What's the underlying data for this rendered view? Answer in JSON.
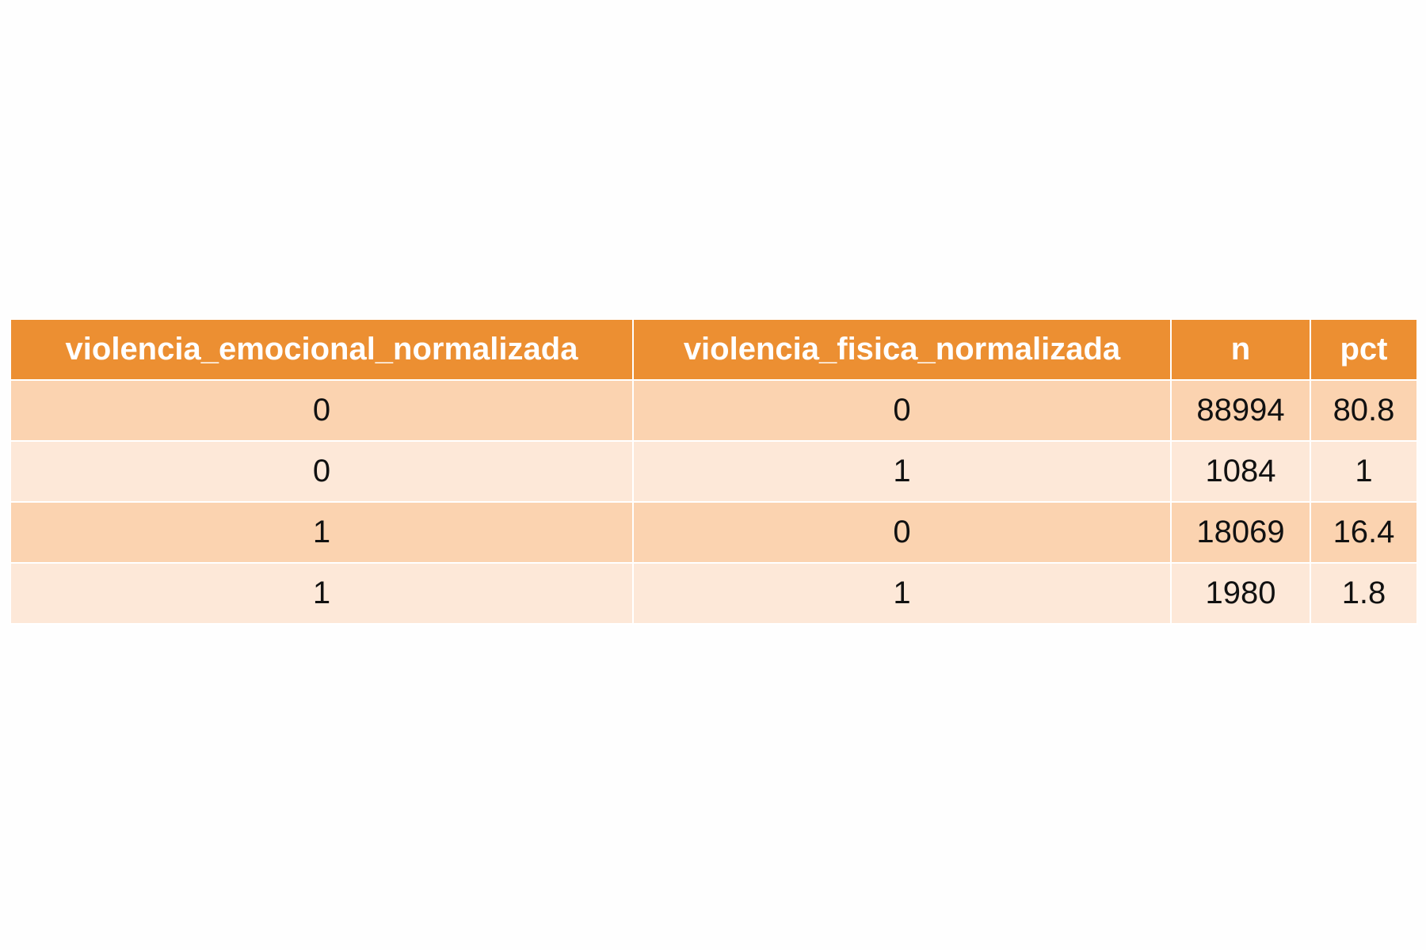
{
  "chart_data": {
    "type": "table",
    "columns": [
      "violencia_emocional_normalizada",
      "violencia_fisica_normalizada",
      "n",
      "pct"
    ],
    "rows": [
      [
        "0",
        "0",
        "88994",
        "80.8"
      ],
      [
        "0",
        "1",
        "1084",
        "1"
      ],
      [
        "1",
        "0",
        "18069",
        "16.4"
      ],
      [
        "1",
        "1",
        "1980",
        "1.8"
      ]
    ]
  },
  "colors": {
    "header_bg": "#ec8f32",
    "row_odd_bg": "#fbd3b0",
    "row_even_bg": "#fde8d8",
    "border": "#ffffff"
  }
}
